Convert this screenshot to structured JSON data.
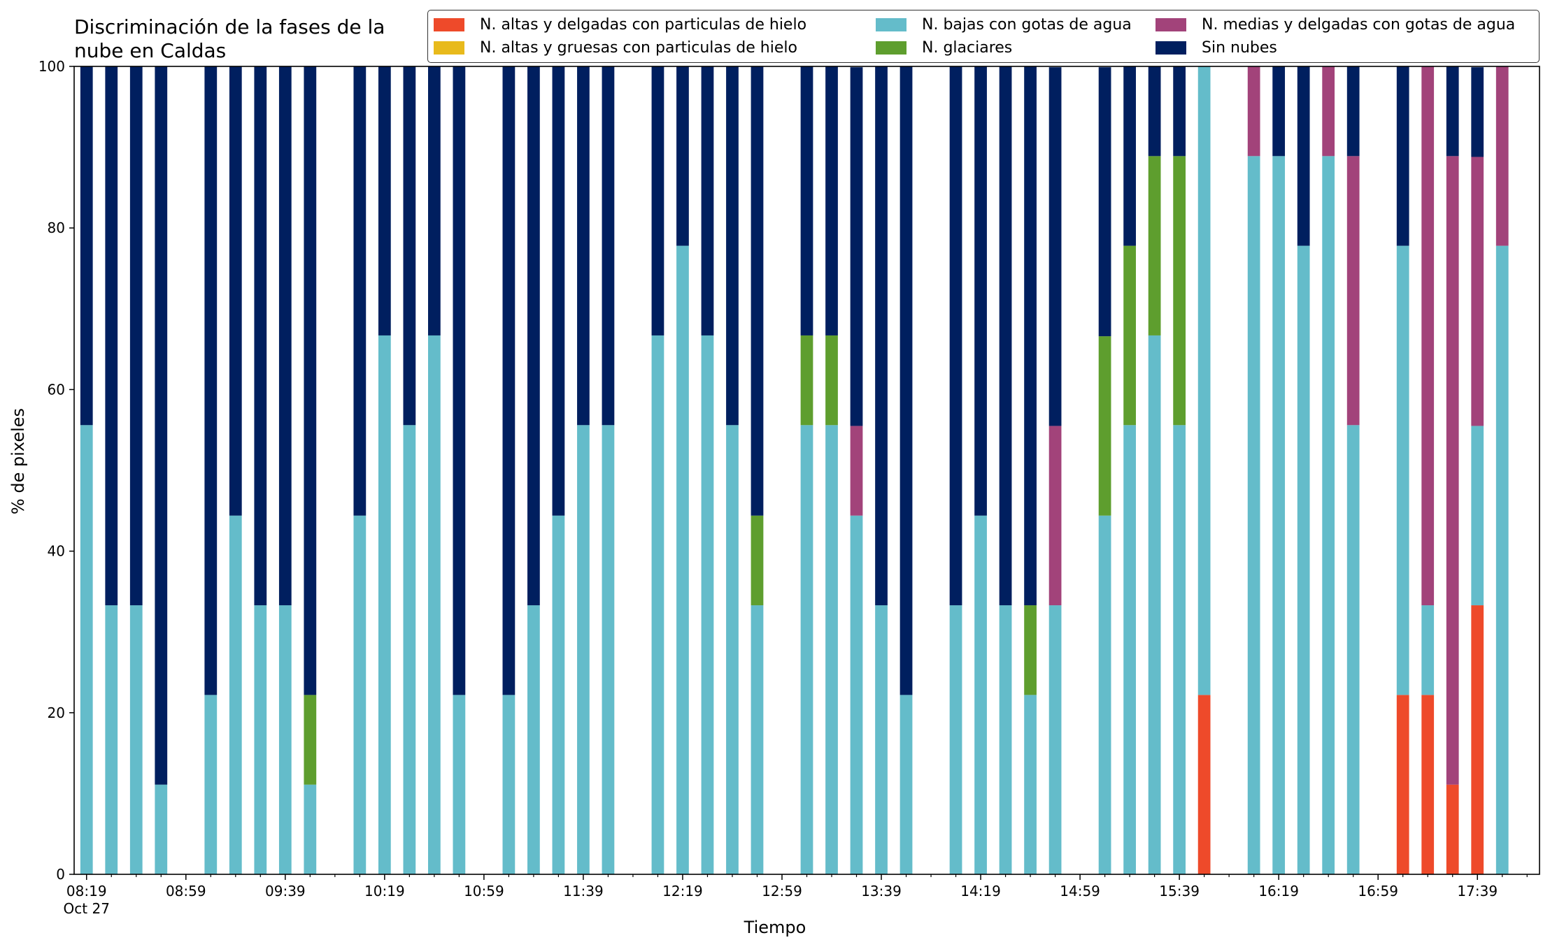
{
  "chart_data": {
    "type": "bar",
    "stacked": true,
    "title_lines": [
      "Discriminación de la fases de la",
      "nube en Caldas"
    ],
    "xlabel": "Tiempo",
    "ylabel": "% de pixeles",
    "ylim": [
      0,
      100
    ],
    "yticks": [
      "0",
      "20",
      "40",
      "60",
      "80",
      "100"
    ],
    "x_axis": {
      "start": "08:19",
      "end": "17:59",
      "step_minutes": 10,
      "label_every_minutes": 40,
      "tick_labels": [
        "08:19",
        "08:59",
        "09:39",
        "10:19",
        "10:59",
        "11:39",
        "12:19",
        "12:59",
        "13:39",
        "14:19",
        "14:59",
        "15:39",
        "16:19",
        "16:59",
        "17:39"
      ],
      "first_tick_sublabel": "Oct 27"
    },
    "legend_position": "top-right",
    "legend": [
      {
        "name": "N. altas y delgadas con particulas de hielo",
        "color": "#ee4a2a"
      },
      {
        "name": "N. altas y gruesas con particulas de hielo",
        "color": "#e8ba1c"
      },
      {
        "name": "N. bajas con gotas de agua",
        "color": "#64bcca"
      },
      {
        "name": "N. glaciares",
        "color": "#5e9e2e"
      },
      {
        "name": "N. medias y delgadas con gotas de agua",
        "color": "#a2437a"
      },
      {
        "name": "Sin nubes",
        "color": "#001f5f"
      }
    ],
    "stack_order": [
      "N. altas y delgadas con particulas de hielo",
      "N. altas y gruesas con particulas de hielo",
      "N. bajas con gotas de agua",
      "N. glaciares",
      "N. medias y delgadas con gotas de agua",
      "Sin nubes"
    ],
    "bars": [
      {
        "time": "08:19",
        "values": [
          0,
          0,
          55.6,
          0,
          0,
          44.4
        ]
      },
      {
        "time": "08:29",
        "values": [
          0,
          0,
          33.3,
          0,
          0,
          66.7
        ]
      },
      {
        "time": "08:39",
        "values": [
          0,
          0,
          33.3,
          0,
          0,
          66.7
        ]
      },
      {
        "time": "08:49",
        "values": [
          0,
          0,
          11.1,
          0,
          0,
          88.9
        ]
      },
      {
        "time": "09:09",
        "values": [
          0,
          0,
          22.2,
          0,
          0,
          77.8
        ]
      },
      {
        "time": "09:19",
        "values": [
          0,
          0,
          44.4,
          0,
          0,
          55.6
        ]
      },
      {
        "time": "09:29",
        "values": [
          0,
          0,
          33.3,
          0,
          0,
          66.7
        ]
      },
      {
        "time": "09:39",
        "values": [
          0,
          0,
          33.3,
          0,
          0,
          66.7
        ]
      },
      {
        "time": "09:49",
        "values": [
          0,
          0,
          11.1,
          11.1,
          0,
          77.8
        ]
      },
      {
        "time": "10:09",
        "values": [
          0,
          0,
          44.4,
          0,
          0,
          55.6
        ]
      },
      {
        "time": "10:19",
        "values": [
          0,
          0,
          66.7,
          0,
          0,
          33.3
        ]
      },
      {
        "time": "10:29",
        "values": [
          0,
          0,
          55.6,
          0,
          0,
          44.4
        ]
      },
      {
        "time": "10:39",
        "values": [
          0,
          0,
          66.7,
          0,
          0,
          33.3
        ]
      },
      {
        "time": "10:49",
        "values": [
          0,
          0,
          22.2,
          0,
          0,
          77.8
        ]
      },
      {
        "time": "11:09",
        "values": [
          0,
          0,
          22.2,
          0,
          0,
          77.8
        ]
      },
      {
        "time": "11:19",
        "values": [
          0,
          0,
          33.3,
          0,
          0,
          66.7
        ]
      },
      {
        "time": "11:29",
        "values": [
          0,
          0,
          44.4,
          0,
          0,
          55.6
        ]
      },
      {
        "time": "11:39",
        "values": [
          0,
          0,
          55.6,
          0,
          0,
          44.4
        ]
      },
      {
        "time": "11:49",
        "values": [
          0,
          0,
          55.6,
          0,
          0,
          44.4
        ]
      },
      {
        "time": "12:09",
        "values": [
          0,
          0,
          66.7,
          0,
          0,
          33.3
        ]
      },
      {
        "time": "12:19",
        "values": [
          0,
          0,
          77.8,
          0,
          0,
          22.2
        ]
      },
      {
        "time": "12:29",
        "values": [
          0,
          0,
          66.7,
          0,
          0,
          33.3
        ]
      },
      {
        "time": "12:39",
        "values": [
          0,
          0,
          55.6,
          0,
          0,
          44.4
        ]
      },
      {
        "time": "12:49",
        "values": [
          0,
          0,
          33.3,
          11.1,
          0,
          55.6
        ]
      },
      {
        "time": "13:09",
        "values": [
          0,
          0,
          55.6,
          11.1,
          0,
          33.3
        ]
      },
      {
        "time": "13:19",
        "values": [
          0,
          0,
          55.6,
          11.1,
          0,
          33.3
        ]
      },
      {
        "time": "13:29",
        "values": [
          0,
          0,
          44.4,
          0,
          11.1,
          44.4
        ]
      },
      {
        "time": "13:39",
        "values": [
          0,
          0,
          33.3,
          0,
          0,
          66.7
        ]
      },
      {
        "time": "13:49",
        "values": [
          0,
          0,
          22.2,
          0,
          0,
          77.8
        ]
      },
      {
        "time": "14:09",
        "values": [
          0,
          0,
          33.3,
          0,
          0,
          66.7
        ]
      },
      {
        "time": "14:19",
        "values": [
          0,
          0,
          44.4,
          0,
          0,
          55.6
        ]
      },
      {
        "time": "14:29",
        "values": [
          0,
          0,
          33.3,
          0,
          0,
          66.7
        ]
      },
      {
        "time": "14:39",
        "values": [
          0,
          0,
          22.2,
          11.1,
          0,
          66.7
        ]
      },
      {
        "time": "14:49",
        "values": [
          0,
          0,
          33.3,
          0,
          22.2,
          44.4
        ]
      },
      {
        "time": "15:09",
        "values": [
          0,
          0,
          44.4,
          22.2,
          0,
          33.3
        ]
      },
      {
        "time": "15:19",
        "values": [
          0,
          0,
          55.6,
          22.2,
          0,
          22.2
        ]
      },
      {
        "time": "15:29",
        "values": [
          0,
          0,
          66.7,
          22.2,
          0,
          11.1
        ]
      },
      {
        "time": "15:39",
        "values": [
          0,
          0,
          55.6,
          33.3,
          0,
          11.1
        ]
      },
      {
        "time": "15:49",
        "values": [
          22.2,
          0,
          77.8,
          0,
          0,
          0
        ]
      },
      {
        "time": "16:09",
        "values": [
          0,
          0,
          88.9,
          0,
          11.1,
          0
        ]
      },
      {
        "time": "16:19",
        "values": [
          0,
          0,
          88.9,
          0,
          0,
          11.1
        ]
      },
      {
        "time": "16:29",
        "values": [
          0,
          0,
          77.8,
          0,
          0,
          22.2
        ]
      },
      {
        "time": "16:39",
        "values": [
          0,
          0,
          88.9,
          0,
          11.1,
          0
        ]
      },
      {
        "time": "16:49",
        "values": [
          0,
          0,
          55.6,
          0,
          33.3,
          11.1
        ]
      },
      {
        "time": "17:09",
        "values": [
          22.2,
          0,
          55.6,
          0,
          0,
          22.2
        ]
      },
      {
        "time": "17:19",
        "values": [
          22.2,
          0,
          11.1,
          0,
          66.7,
          0
        ]
      },
      {
        "time": "17:29",
        "values": [
          11.1,
          0,
          0,
          0,
          77.8,
          11.1
        ]
      },
      {
        "time": "17:39",
        "values": [
          33.3,
          0,
          22.2,
          0,
          33.3,
          11.1
        ]
      },
      {
        "time": "17:49",
        "values": [
          0,
          0,
          77.8,
          0,
          22.2,
          0
        ]
      }
    ]
  }
}
